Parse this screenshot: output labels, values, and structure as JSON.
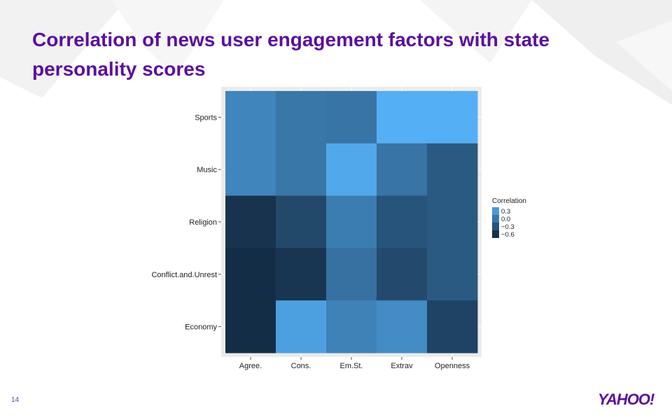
{
  "slide": {
    "title": "Correlation of news user engagement factors with state personality scores",
    "page_number": "14",
    "logo_text": "YAHOO!"
  },
  "colors": {
    "title": "#5b0f9e",
    "panel_background": "#ebebeb",
    "scale_high": "#56b1f7",
    "scale_low": "#132b43"
  },
  "chart_data": {
    "type": "heatmap",
    "x_categories": [
      "Agree.",
      "Cons.",
      "Em.St.",
      "Extrav",
      "Openness"
    ],
    "y_categories": [
      "Sports",
      "Music",
      "Religion",
      "Conflict.and.Unrest",
      "Economy"
    ],
    "values": [
      [
        0.12,
        0.0,
        -0.02,
        0.48,
        0.48
      ],
      [
        0.12,
        0.0,
        0.42,
        -0.02,
        -0.25
      ],
      [
        -0.58,
        -0.4,
        0.05,
        -0.3,
        -0.25
      ],
      [
        -0.63,
        -0.56,
        -0.05,
        -0.38,
        -0.25
      ],
      [
        -0.63,
        0.35,
        0.1,
        0.18,
        -0.44
      ]
    ],
    "value_range": [
      -0.65,
      0.5
    ],
    "legend": {
      "title": "Correlation",
      "placement": "right",
      "entries": [
        {
          "label": "0.3",
          "value": 0.3
        },
        {
          "label": "0.0",
          "value": 0.0
        },
        {
          "label": "−0.3",
          "value": -0.3
        },
        {
          "label": "−0.6",
          "value": -0.6
        }
      ]
    },
    "grid": true
  }
}
